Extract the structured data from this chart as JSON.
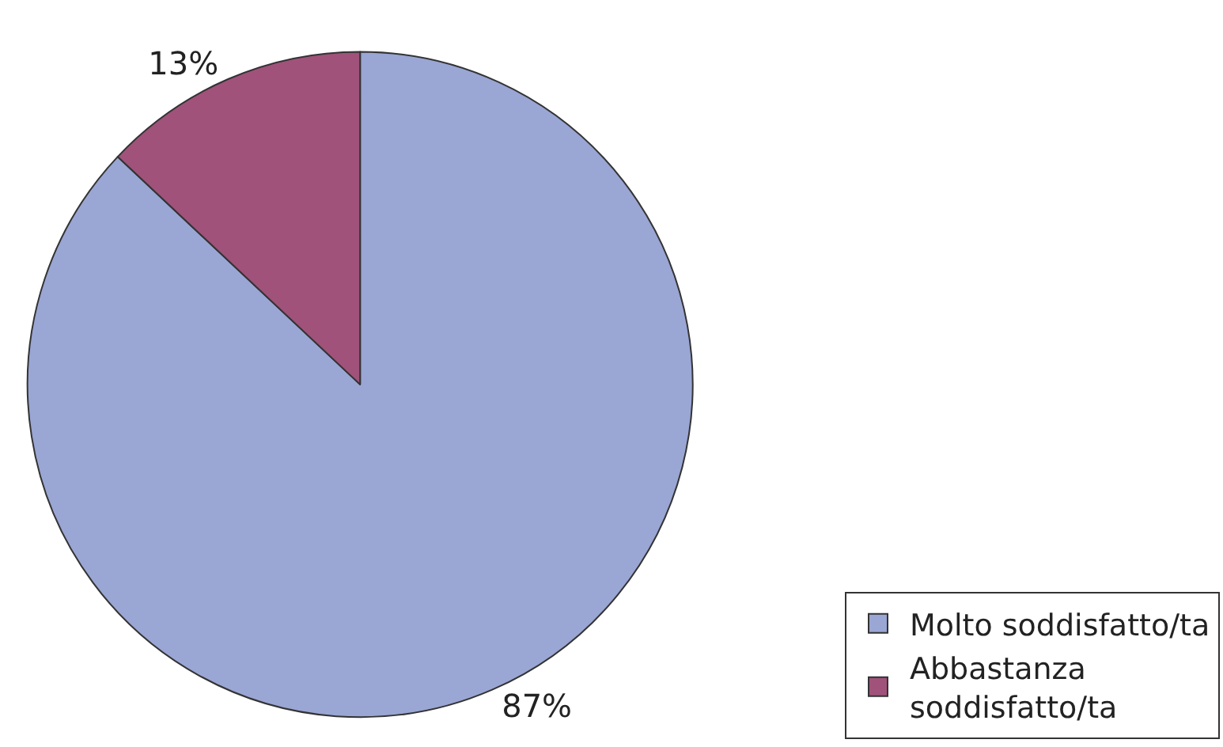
{
  "chart_data": {
    "type": "pie",
    "categories": [
      "Molto soddisfatto/ta",
      "Abbastanza soddisfatto/ta"
    ],
    "values": [
      87,
      13
    ],
    "colors": [
      "#9aa6d4",
      "#a0527a"
    ],
    "value_labels": [
      "87%",
      "13%"
    ],
    "legend": "bottom right"
  }
}
